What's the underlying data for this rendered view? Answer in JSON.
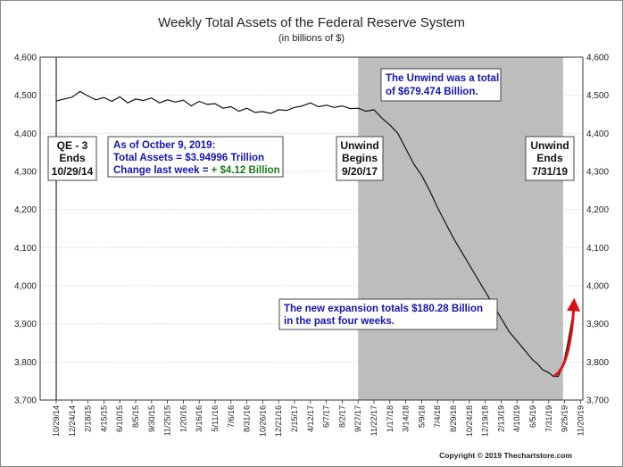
{
  "chart_data": {
    "type": "line",
    "title": "Weekly Total Assets of the Federal Reserve System",
    "subtitle": "(in billions of $)",
    "ylabel": "",
    "xlabel": "",
    "ylim": [
      3700,
      4600
    ],
    "yticks": [
      3700,
      3800,
      3900,
      4000,
      4100,
      4200,
      4300,
      4400,
      4500,
      4600
    ],
    "ytick_labels": [
      "3,700",
      "3,800",
      "3,900",
      "4,000",
      "4,100",
      "4,200",
      "4,300",
      "4,400",
      "4,500",
      "4,600"
    ],
    "xticks": [
      "10/29/14",
      "12/24/14",
      "2/18/15",
      "4/15/15",
      "6/10/15",
      "8/5/15",
      "9/30/15",
      "11/25/15",
      "1/20/16",
      "3/16/16",
      "5/11/16",
      "7/6/16",
      "8/31/16",
      "10/26/16",
      "12/21/16",
      "2/15/17",
      "4/12/17",
      "6/7/17",
      "8/2/17",
      "9/27/17",
      "11/22/17",
      "1/17/18",
      "3/14/18",
      "5/9/18",
      "7/4/18",
      "8/29/18",
      "10/24/18",
      "12/19/18",
      "2/13/19",
      "4/10/19",
      "6/5/19",
      "7/31/19",
      "9/25/19",
      "11/20/19"
    ],
    "series": [
      {
        "name": "Total Assets",
        "x_index": [
          0,
          0.5,
          1,
          1.5,
          2,
          2.5,
          3,
          3.5,
          4,
          4.5,
          5,
          5.5,
          6,
          6.5,
          7,
          7.5,
          8,
          8.5,
          9,
          9.5,
          10,
          10.5,
          11,
          11.5,
          12,
          12.5,
          13,
          13.5,
          14,
          14.5,
          15,
          15.5,
          16,
          16.5,
          17,
          17.5,
          18,
          18.5,
          19,
          19.5,
          20,
          20.5,
          21,
          21.5,
          22,
          22.5,
          23,
          23.5,
          24,
          24.5,
          25,
          25.5,
          26,
          26.5,
          27,
          27.5,
          28,
          28.5,
          29,
          29.5,
          30,
          30.3,
          30.6,
          31,
          31.3,
          31.6,
          31.9,
          32.2,
          32.5,
          32.7
        ],
        "values": [
          4485,
          4490,
          4495,
          4510,
          4498,
          4488,
          4494,
          4484,
          4496,
          4480,
          4490,
          4486,
          4493,
          4480,
          4488,
          4482,
          4487,
          4472,
          4484,
          4476,
          4478,
          4466,
          4470,
          4458,
          4466,
          4455,
          4457,
          4452,
          4462,
          4460,
          4468,
          4472,
          4480,
          4470,
          4474,
          4468,
          4472,
          4465,
          4466,
          4458,
          4462,
          4440,
          4422,
          4400,
          4360,
          4320,
          4290,
          4250,
          4205,
          4165,
          4125,
          4090,
          4055,
          4020,
          3985,
          3950,
          3915,
          3880,
          3855,
          3830,
          3805,
          3795,
          3780,
          3772,
          3762,
          3762,
          3790,
          3850,
          3920,
          3950
        ]
      }
    ],
    "shaded_region": {
      "from_index": 19,
      "to_index": 31.9,
      "color": "#bdbdbd"
    },
    "first_vline_index": 0,
    "annotations": {
      "qe3": [
        "QE - 3",
        "Ends",
        "10/29/14"
      ],
      "unwind_begins": [
        "Unwind",
        "Begins",
        "9/20/17"
      ],
      "unwind_ends": [
        "Unwind",
        "Ends",
        "7/31/19"
      ],
      "as_of": "As of Octber 9, 2019:",
      "total_assets": "Total Assets = $3.94996 Trillion",
      "change_label": "Change last week = ",
      "change_value": "+ $4.12 Billion",
      "unwind_total_1": "The Unwind was a total",
      "unwind_total_2": "of $679.474 Billion.",
      "expansion_1": "The new expansion totals $180.28 Billion",
      "expansion_2": "in the past four weeks."
    },
    "copyright": "Copyright © 2019 Thechartstore.com",
    "colors": {
      "line": "#111111",
      "shade": "#bdbdbd",
      "arrow": "#e01010",
      "blue_text": "#1414b4",
      "green_text": "#1a7a1a",
      "grid": "#bbbbbb"
    }
  }
}
